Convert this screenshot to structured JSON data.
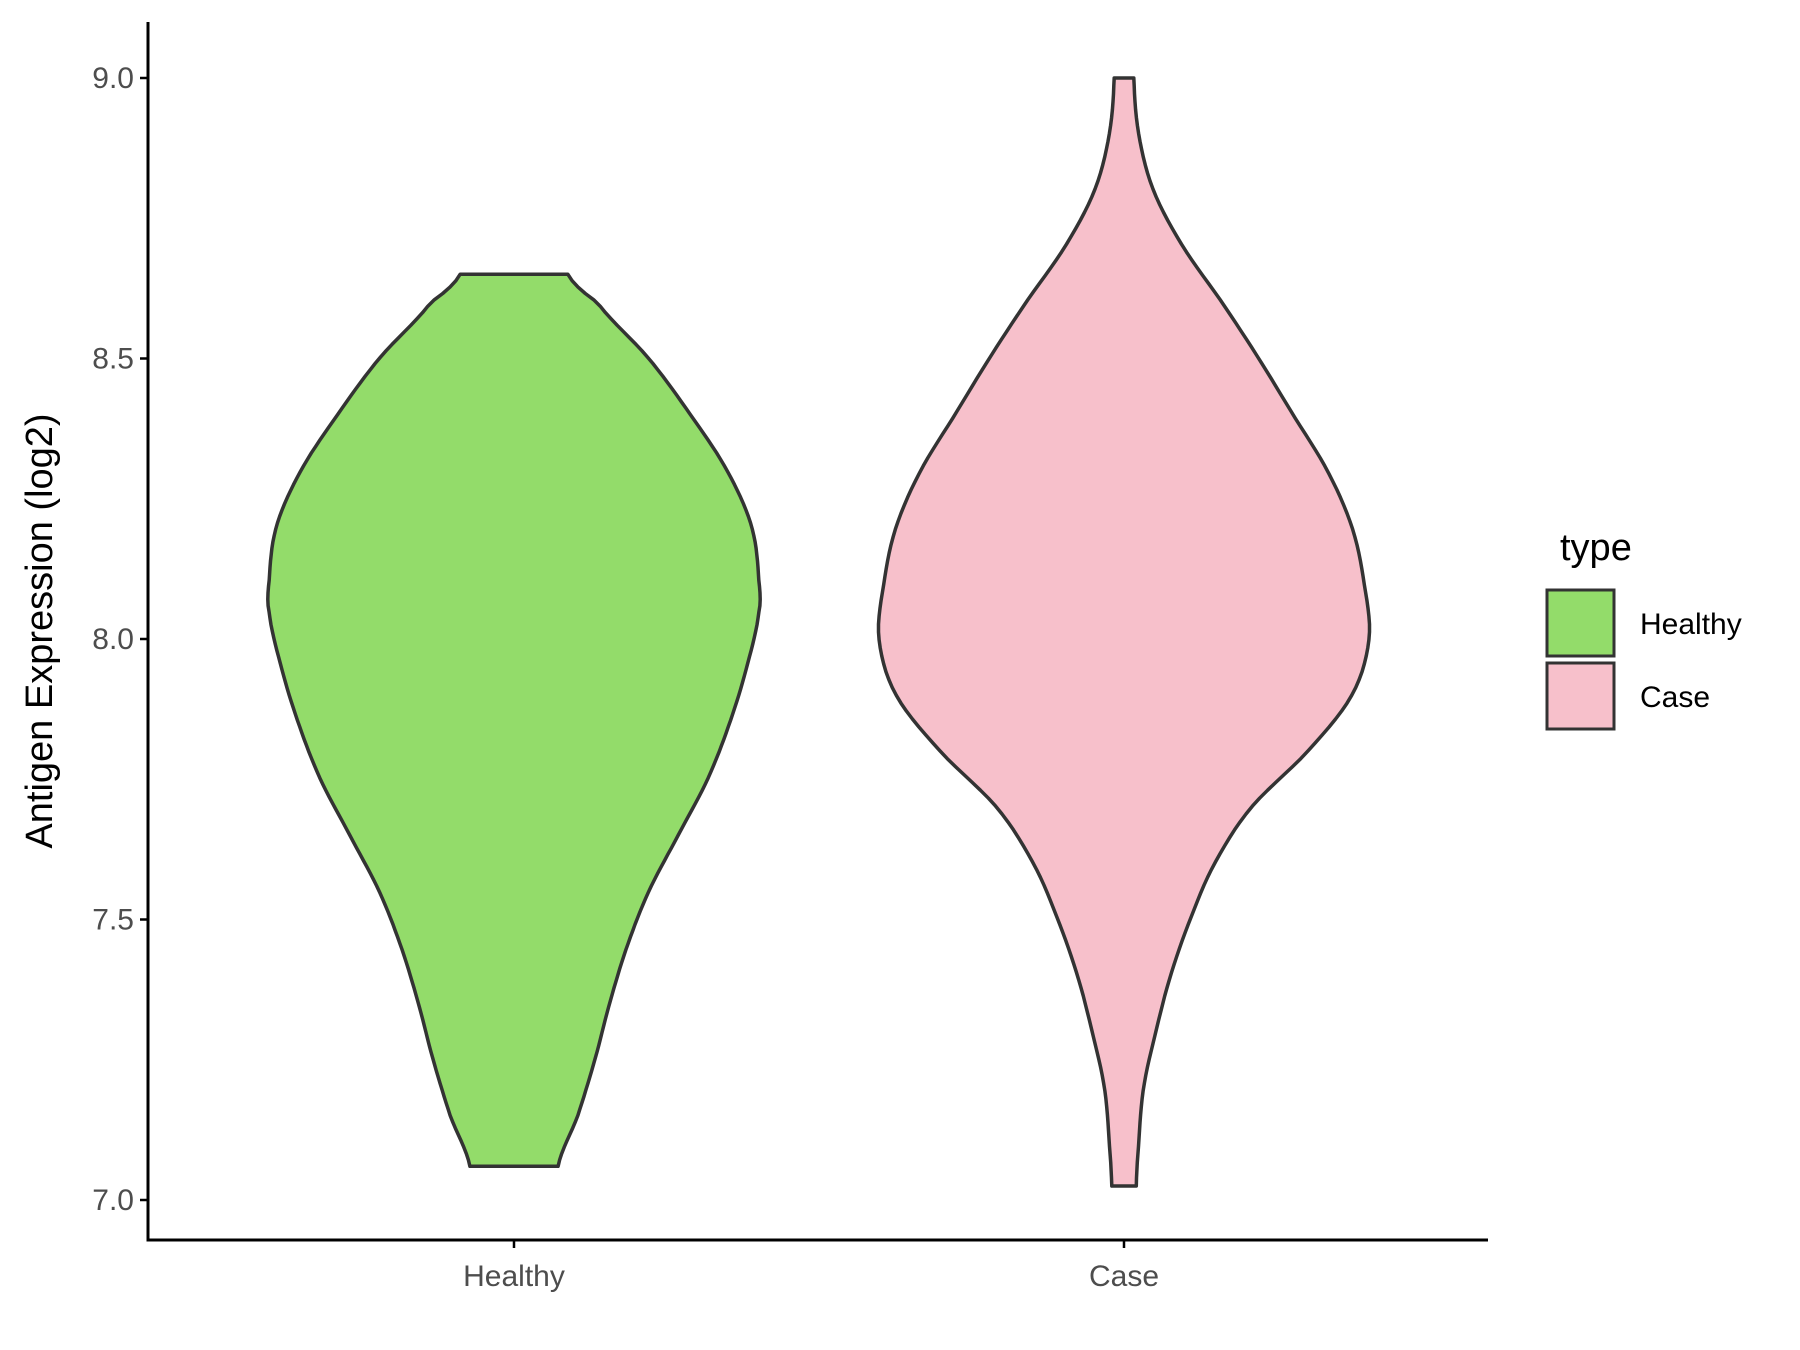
{
  "chart_data": {
    "type": "violin",
    "title": "",
    "xlabel": "",
    "ylabel": "Antigen Expression (log2)",
    "ylim": [
      6.93,
      9.1
    ],
    "yticks": [
      "7.0",
      "7.5",
      "8.0",
      "8.5",
      "9.0"
    ],
    "ytick_values": [
      7.0,
      7.5,
      8.0,
      8.5,
      9.0
    ],
    "categories": [
      "Healthy",
      "Case"
    ],
    "grid": false,
    "legend": {
      "title": "type",
      "position": "right",
      "items": [
        {
          "label": "Healthy",
          "color": "#93dc6a"
        },
        {
          "label": "Case",
          "color": "#f7c0cb"
        }
      ]
    },
    "series": [
      {
        "name": "Healthy",
        "color": "#93dc6a",
        "min": 7.06,
        "max": 8.65,
        "density_profile": [
          [
            7.06,
            0.18
          ],
          [
            7.15,
            0.26
          ],
          [
            7.25,
            0.33
          ],
          [
            7.35,
            0.39
          ],
          [
            7.45,
            0.46
          ],
          [
            7.55,
            0.55
          ],
          [
            7.65,
            0.67
          ],
          [
            7.75,
            0.79
          ],
          [
            7.85,
            0.88
          ],
          [
            7.95,
            0.95
          ],
          [
            8.05,
            1.0
          ],
          [
            8.1,
            1.0
          ],
          [
            8.2,
            0.97
          ],
          [
            8.3,
            0.87
          ],
          [
            8.4,
            0.72
          ],
          [
            8.5,
            0.55
          ],
          [
            8.6,
            0.34
          ],
          [
            8.65,
            0.22
          ]
        ]
      },
      {
        "name": "Case",
        "color": "#f7c0cb",
        "min": 7.025,
        "max": 9.0,
        "density_profile": [
          [
            7.025,
            0.05
          ],
          [
            7.1,
            0.06
          ],
          [
            7.2,
            0.08
          ],
          [
            7.3,
            0.13
          ],
          [
            7.4,
            0.19
          ],
          [
            7.5,
            0.27
          ],
          [
            7.6,
            0.37
          ],
          [
            7.7,
            0.52
          ],
          [
            7.8,
            0.75
          ],
          [
            7.9,
            0.93
          ],
          [
            8.0,
            1.0
          ],
          [
            8.1,
            0.98
          ],
          [
            8.2,
            0.93
          ],
          [
            8.3,
            0.83
          ],
          [
            8.4,
            0.69
          ],
          [
            8.5,
            0.55
          ],
          [
            8.6,
            0.4
          ],
          [
            8.7,
            0.24
          ],
          [
            8.8,
            0.12
          ],
          [
            8.9,
            0.06
          ],
          [
            9.0,
            0.04
          ]
        ]
      }
    ]
  }
}
